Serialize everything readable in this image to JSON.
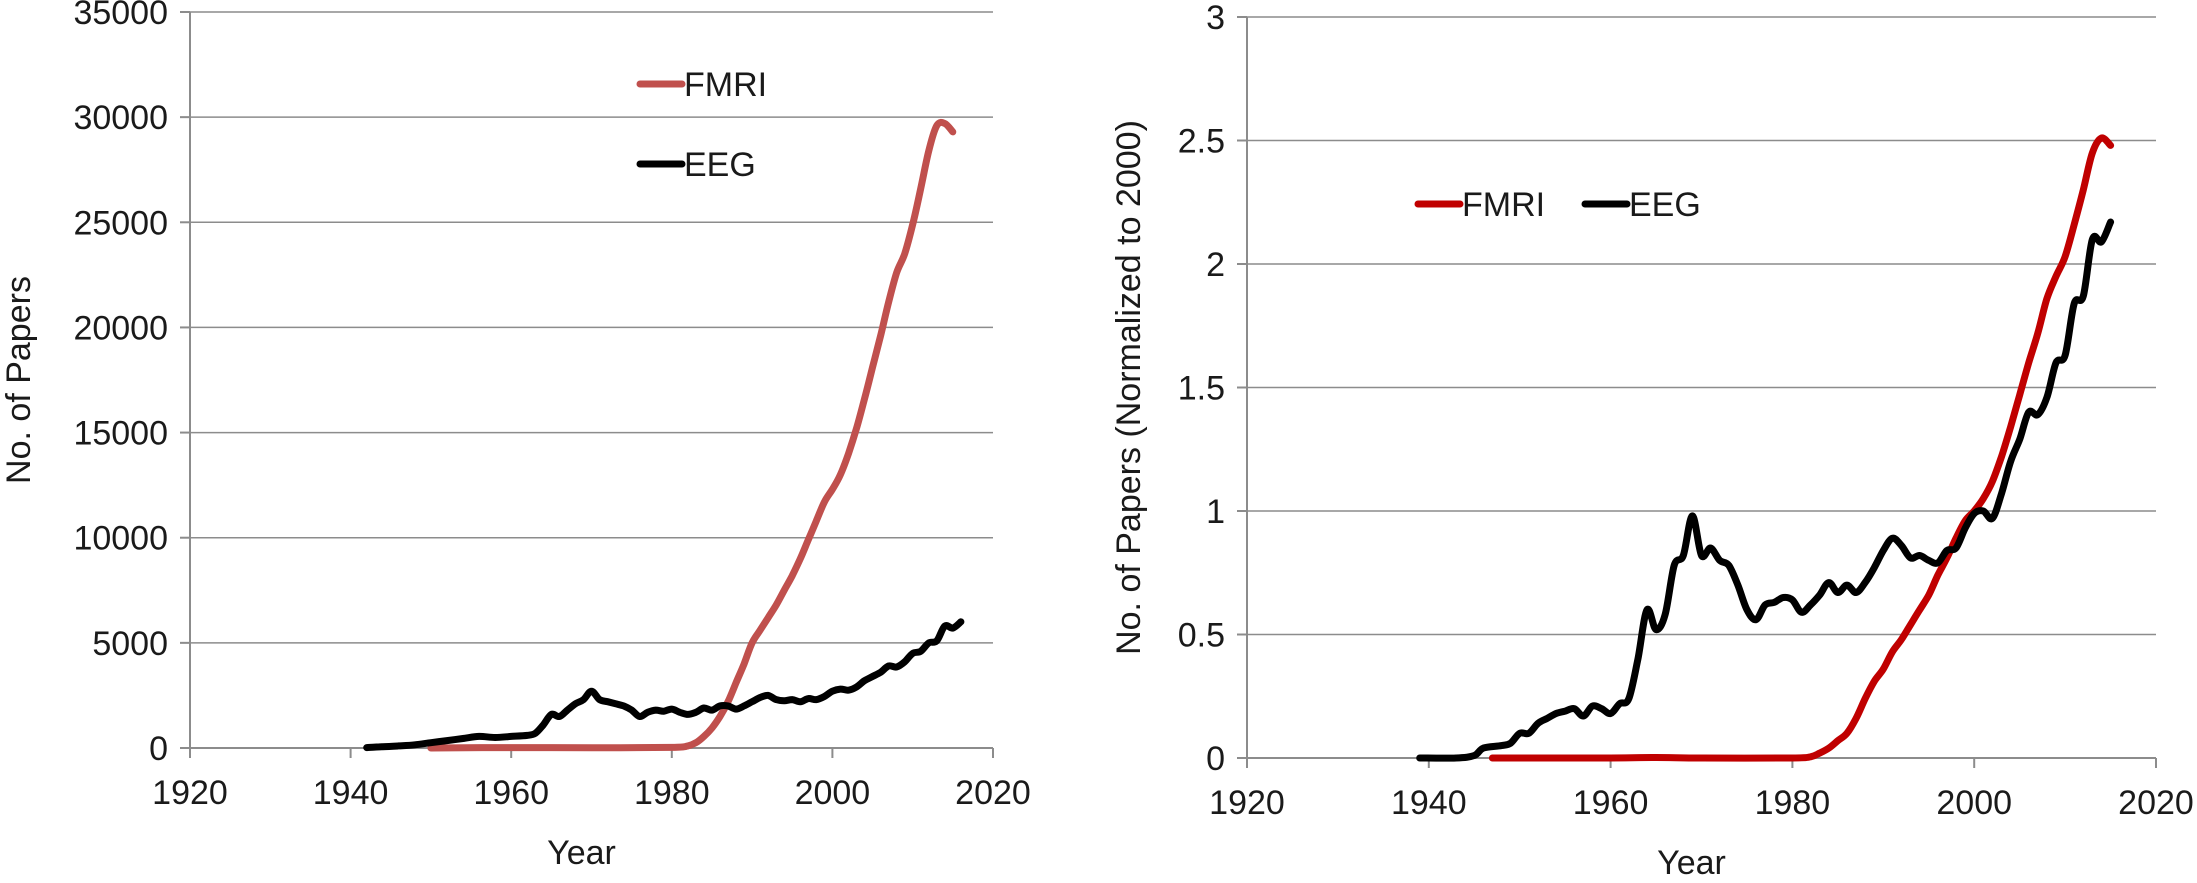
{
  "chart_data": [
    {
      "type": "line",
      "title": "",
      "xlabel": "Year",
      "ylabel": "No. of Papers",
      "xlim": [
        1920,
        2020
      ],
      "ylim": [
        0,
        35000
      ],
      "x_ticks": [
        "1920",
        "1940",
        "1960",
        "1980",
        "2000",
        "2020"
      ],
      "y_ticks": [
        "0",
        "5000",
        "10000",
        "15000",
        "20000",
        "25000",
        "30000",
        "35000"
      ],
      "grid": true,
      "legend_position": "top-center, stacked",
      "series": [
        {
          "name": "FMRI",
          "color": "#c0504d",
          "points": [
            [
              1950,
              0
            ],
            [
              1960,
              20
            ],
            [
              1970,
              10
            ],
            [
              1980,
              30
            ],
            [
              1982,
              100
            ],
            [
              1983,
              250
            ],
            [
              1984,
              550
            ],
            [
              1985,
              950
            ],
            [
              1986,
              1500
            ],
            [
              1987,
              2200
            ],
            [
              1988,
              3100
            ],
            [
              1989,
              4000
            ],
            [
              1990,
              5000
            ],
            [
              1991,
              5600
            ],
            [
              1992,
              6200
            ],
            [
              1993,
              6800
            ],
            [
              1994,
              7500
            ],
            [
              1995,
              8200
            ],
            [
              1996,
              9000
            ],
            [
              1997,
              9900
            ],
            [
              1998,
              10800
            ],
            [
              1999,
              11700
            ],
            [
              2000,
              12300
            ],
            [
              2001,
              13000
            ],
            [
              2002,
              14000
            ],
            [
              2003,
              15200
            ],
            [
              2004,
              16600
            ],
            [
              2005,
              18100
            ],
            [
              2006,
              19600
            ],
            [
              2007,
              21200
            ],
            [
              2008,
              22600
            ],
            [
              2009,
              23500
            ],
            [
              2010,
              24900
            ],
            [
              2011,
              26600
            ],
            [
              2012,
              28400
            ],
            [
              2013,
              29600
            ],
            [
              2014,
              29700
            ],
            [
              2015,
              29300
            ]
          ]
        },
        {
          "name": "EEG",
          "color": "#000000",
          "points": [
            [
              1942,
              20
            ],
            [
              1944,
              60
            ],
            [
              1946,
              100
            ],
            [
              1948,
              150
            ],
            [
              1950,
              250
            ],
            [
              1952,
              350
            ],
            [
              1954,
              450
            ],
            [
              1956,
              550
            ],
            [
              1958,
              500
            ],
            [
              1960,
              550
            ],
            [
              1962,
              600
            ],
            [
              1963,
              700
            ],
            [
              1964,
              1100
            ],
            [
              1965,
              1600
            ],
            [
              1966,
              1500
            ],
            [
              1967,
              1800
            ],
            [
              1968,
              2100
            ],
            [
              1969,
              2300
            ],
            [
              1970,
              2700
            ],
            [
              1971,
              2300
            ],
            [
              1972,
              2200
            ],
            [
              1973,
              2100
            ],
            [
              1974,
              2000
            ],
            [
              1975,
              1800
            ],
            [
              1976,
              1500
            ],
            [
              1977,
              1700
            ],
            [
              1978,
              1800
            ],
            [
              1979,
              1750
            ],
            [
              1980,
              1850
            ],
            [
              1981,
              1700
            ],
            [
              1982,
              1600
            ],
            [
              1983,
              1700
            ],
            [
              1984,
              1900
            ],
            [
              1985,
              1800
            ],
            [
              1986,
              2000
            ],
            [
              1987,
              2000
            ],
            [
              1988,
              1850
            ],
            [
              1989,
              2000
            ],
            [
              1990,
              2200
            ],
            [
              1991,
              2400
            ],
            [
              1992,
              2500
            ],
            [
              1993,
              2300
            ],
            [
              1994,
              2250
            ],
            [
              1995,
              2300
            ],
            [
              1996,
              2200
            ],
            [
              1997,
              2350
            ],
            [
              1998,
              2300
            ],
            [
              1999,
              2450
            ],
            [
              2000,
              2700
            ],
            [
              2001,
              2800
            ],
            [
              2002,
              2750
            ],
            [
              2003,
              2900
            ],
            [
              2004,
              3200
            ],
            [
              2005,
              3400
            ],
            [
              2006,
              3600
            ],
            [
              2007,
              3900
            ],
            [
              2008,
              3850
            ],
            [
              2009,
              4100
            ],
            [
              2010,
              4500
            ],
            [
              2011,
              4600
            ],
            [
              2012,
              5000
            ],
            [
              2013,
              5100
            ],
            [
              2014,
              5800
            ],
            [
              2015,
              5700
            ],
            [
              2016,
              6000
            ]
          ]
        }
      ]
    },
    {
      "type": "line",
      "title": "",
      "xlabel": "Year",
      "ylabel": "No. of Papers (Normalized to 2000)",
      "xlim": [
        1920,
        2020
      ],
      "ylim": [
        0,
        3
      ],
      "x_ticks": [
        "1920",
        "1940",
        "1960",
        "1980",
        "2000",
        "2020"
      ],
      "y_ticks": [
        "0",
        "0.5",
        "1",
        "1.5",
        "2",
        "2.5",
        "3"
      ],
      "grid": true,
      "legend_position": "upper-left, inline",
      "series": [
        {
          "name": "FMRI",
          "color": "#c00000",
          "points": [
            [
              1947,
              0
            ],
            [
              1960,
              0
            ],
            [
              1965,
              0.002
            ],
            [
              1970,
              0
            ],
            [
              1980,
              0
            ],
            [
              1982,
              0.005
            ],
            [
              1983,
              0.02
            ],
            [
              1984,
              0.04
            ],
            [
              1985,
              0.07
            ],
            [
              1986,
              0.1
            ],
            [
              1987,
              0.16
            ],
            [
              1988,
              0.24
            ],
            [
              1989,
              0.31
            ],
            [
              1990,
              0.36
            ],
            [
              1991,
              0.43
            ],
            [
              1992,
              0.48
            ],
            [
              1993,
              0.54
            ],
            [
              1994,
              0.6
            ],
            [
              1995,
              0.66
            ],
            [
              1996,
              0.74
            ],
            [
              1997,
              0.81
            ],
            [
              1998,
              0.89
            ],
            [
              1999,
              0.96
            ],
            [
              2000,
              1.0
            ],
            [
              2001,
              1.05
            ],
            [
              2002,
              1.12
            ],
            [
              2003,
              1.22
            ],
            [
              2004,
              1.34
            ],
            [
              2005,
              1.47
            ],
            [
              2006,
              1.6
            ],
            [
              2007,
              1.72
            ],
            [
              2008,
              1.86
            ],
            [
              2009,
              1.95
            ],
            [
              2010,
              2.03
            ],
            [
              2011,
              2.16
            ],
            [
              2012,
              2.3
            ],
            [
              2013,
              2.45
            ],
            [
              2014,
              2.51
            ],
            [
              2015,
              2.48
            ]
          ]
        },
        {
          "name": "EEG",
          "color": "#000000",
          "points": [
            [
              1939,
              0
            ],
            [
              1943,
              0
            ],
            [
              1945,
              0.01
            ],
            [
              1946,
              0.04
            ],
            [
              1948,
              0.05
            ],
            [
              1949,
              0.06
            ],
            [
              1950,
              0.1
            ],
            [
              1951,
              0.1
            ],
            [
              1952,
              0.14
            ],
            [
              1953,
              0.16
            ],
            [
              1954,
              0.18
            ],
            [
              1955,
              0.19
            ],
            [
              1956,
              0.2
            ],
            [
              1957,
              0.17
            ],
            [
              1958,
              0.21
            ],
            [
              1959,
              0.2
            ],
            [
              1960,
              0.18
            ],
            [
              1961,
              0.22
            ],
            [
              1962,
              0.24
            ],
            [
              1963,
              0.4
            ],
            [
              1964,
              0.6
            ],
            [
              1965,
              0.52
            ],
            [
              1966,
              0.58
            ],
            [
              1967,
              0.78
            ],
            [
              1968,
              0.82
            ],
            [
              1969,
              0.98
            ],
            [
              1970,
              0.82
            ],
            [
              1971,
              0.85
            ],
            [
              1972,
              0.8
            ],
            [
              1973,
              0.78
            ],
            [
              1974,
              0.7
            ],
            [
              1975,
              0.6
            ],
            [
              1976,
              0.56
            ],
            [
              1977,
              0.62
            ],
            [
              1978,
              0.63
            ],
            [
              1979,
              0.65
            ],
            [
              1980,
              0.64
            ],
            [
              1981,
              0.59
            ],
            [
              1982,
              0.62
            ],
            [
              1983,
              0.66
            ],
            [
              1984,
              0.71
            ],
            [
              1985,
              0.67
            ],
            [
              1986,
              0.7
            ],
            [
              1987,
              0.67
            ],
            [
              1988,
              0.71
            ],
            [
              1989,
              0.77
            ],
            [
              1990,
              0.84
            ],
            [
              1991,
              0.89
            ],
            [
              1992,
              0.86
            ],
            [
              1993,
              0.81
            ],
            [
              1994,
              0.82
            ],
            [
              1995,
              0.8
            ],
            [
              1996,
              0.79
            ],
            [
              1997,
              0.84
            ],
            [
              1998,
              0.85
            ],
            [
              1999,
              0.93
            ],
            [
              2000,
              0.99
            ],
            [
              2001,
              1.0
            ],
            [
              2002,
              0.97
            ],
            [
              2003,
              1.07
            ],
            [
              2004,
              1.2
            ],
            [
              2005,
              1.29
            ],
            [
              2006,
              1.4
            ],
            [
              2007,
              1.39
            ],
            [
              2008,
              1.46
            ],
            [
              2009,
              1.6
            ],
            [
              2010,
              1.63
            ],
            [
              2011,
              1.84
            ],
            [
              2012,
              1.87
            ],
            [
              2013,
              2.1
            ],
            [
              2014,
              2.09
            ],
            [
              2015,
              2.17
            ]
          ]
        }
      ]
    }
  ]
}
